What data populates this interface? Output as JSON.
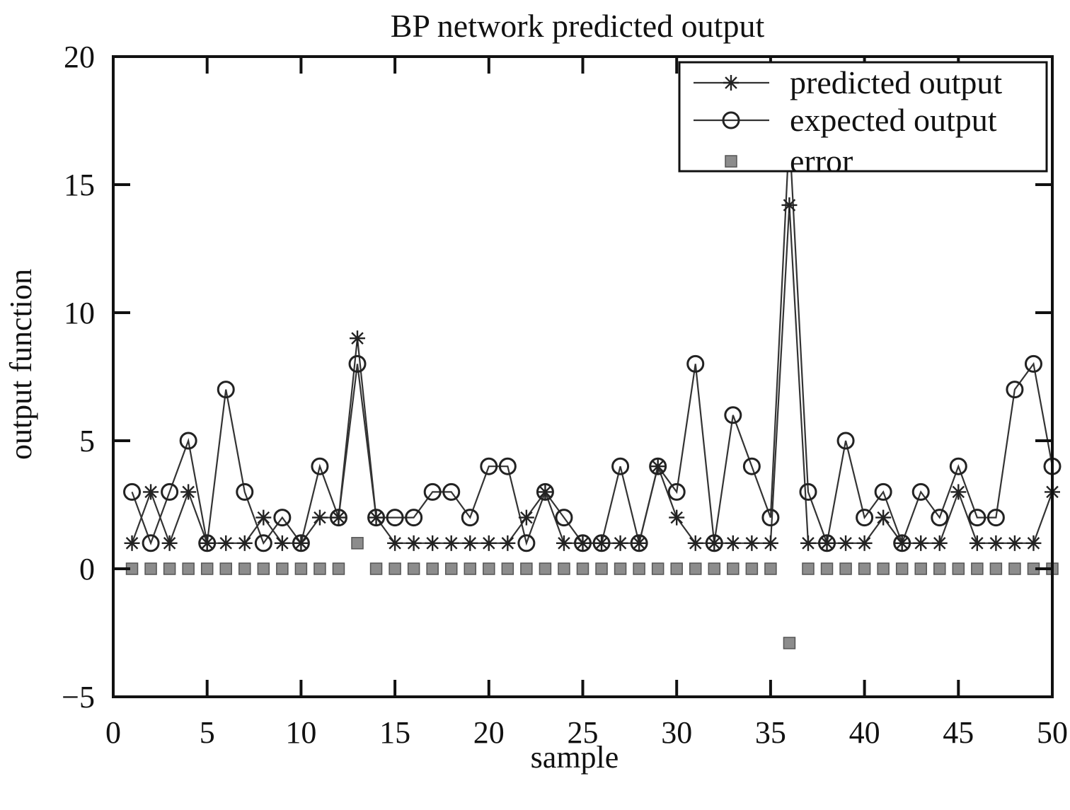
{
  "chart_data": {
    "type": "line",
    "title": "BP network predicted output",
    "xlabel": "sample",
    "ylabel": "output function",
    "xlim": [
      0,
      50
    ],
    "ylim": [
      -5,
      20
    ],
    "xticks": [
      "0",
      "5",
      "10",
      "15",
      "20",
      "25",
      "30",
      "35",
      "40",
      "45",
      "50"
    ],
    "yticks": [
      "−5",
      "0",
      "5",
      "10",
      "15",
      "20"
    ],
    "grid": false,
    "legend_position": "top-right",
    "x": [
      1,
      2,
      3,
      4,
      5,
      6,
      7,
      8,
      9,
      10,
      11,
      12,
      13,
      14,
      15,
      16,
      17,
      18,
      19,
      20,
      21,
      22,
      23,
      24,
      25,
      26,
      27,
      28,
      29,
      30,
      31,
      32,
      33,
      34,
      35,
      36,
      37,
      38,
      39,
      40,
      41,
      42,
      43,
      44,
      45,
      46,
      47,
      48,
      49,
      50
    ],
    "series": [
      {
        "name": "predicted output",
        "marker": "star",
        "values": [
          1,
          3,
          1,
          3,
          1,
          1,
          1,
          2,
          1,
          1,
          2,
          2,
          9,
          2,
          1,
          1,
          1,
          1,
          1,
          1,
          1,
          2,
          3,
          1,
          1,
          1,
          1,
          1,
          4,
          2,
          1,
          1,
          1,
          1,
          1,
          14.2,
          1,
          1,
          1,
          1,
          2,
          1,
          1,
          1,
          3,
          1,
          1,
          1,
          1,
          3
        ]
      },
      {
        "name": "expected output",
        "marker": "circle",
        "values": [
          3,
          1,
          3,
          5,
          1,
          7,
          3,
          1,
          2,
          1,
          4,
          2,
          8,
          2,
          2,
          2,
          3,
          3,
          2,
          4,
          4,
          1,
          3,
          2,
          1,
          1,
          4,
          1,
          4,
          3,
          8,
          1,
          6,
          4,
          2,
          17,
          3,
          1,
          5,
          2,
          3,
          1,
          3,
          2,
          4,
          2,
          2,
          7,
          8,
          4
        ]
      },
      {
        "name": "error",
        "marker": "square",
        "values": [
          0,
          0,
          0,
          0,
          0,
          0,
          0,
          0,
          0,
          0,
          0,
          0,
          1,
          0,
          0,
          0,
          0,
          0,
          0,
          0,
          0,
          0,
          0,
          0,
          0,
          0,
          0,
          0,
          0,
          0,
          0,
          0,
          0,
          0,
          0,
          -2.9,
          0,
          0,
          0,
          0,
          0,
          0,
          0,
          0,
          0,
          0,
          0,
          0,
          0,
          0
        ]
      }
    ]
  }
}
